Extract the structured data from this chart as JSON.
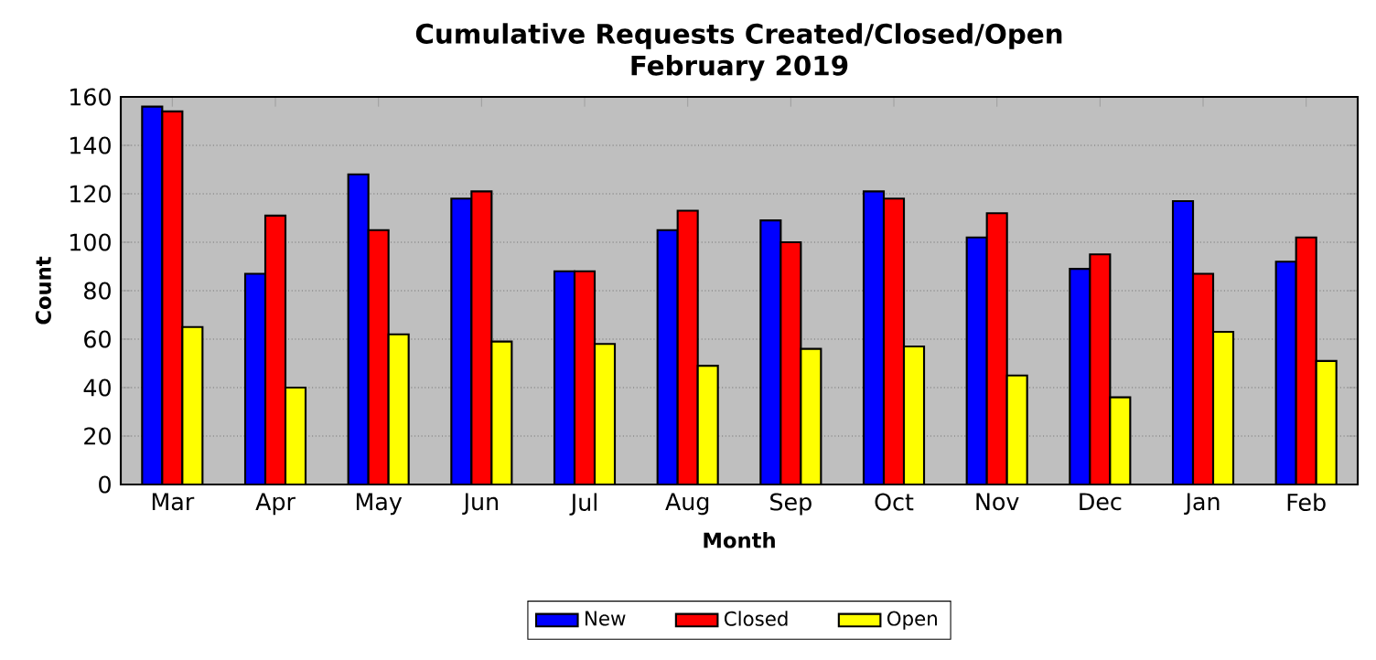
{
  "chart_data": {
    "type": "bar",
    "title": "Cumulative Requests Created/Closed/Open",
    "subtitle": "February 2019",
    "xlabel": "Month",
    "ylabel": "Count",
    "categories": [
      "Mar",
      "Apr",
      "May",
      "Jun",
      "Jul",
      "Aug",
      "Sep",
      "Oct",
      "Nov",
      "Dec",
      "Jan",
      "Feb"
    ],
    "series": [
      {
        "name": "New",
        "color": "#0000ff",
        "values": [
          156,
          87,
          128,
          118,
          88,
          105,
          109,
          121,
          102,
          89,
          117,
          92
        ]
      },
      {
        "name": "Closed",
        "color": "#ff0000",
        "values": [
          154,
          111,
          105,
          121,
          88,
          113,
          100,
          118,
          112,
          95,
          87,
          102
        ]
      },
      {
        "name": "Open",
        "color": "#ffff00",
        "values": [
          65,
          40,
          62,
          59,
          58,
          49,
          56,
          57,
          45,
          36,
          63,
          51
        ]
      }
    ],
    "ylim": [
      0,
      160
    ],
    "yticks": [
      0,
      20,
      40,
      60,
      80,
      100,
      120,
      140,
      160
    ],
    "grid": "y",
    "legend": "bottom"
  }
}
